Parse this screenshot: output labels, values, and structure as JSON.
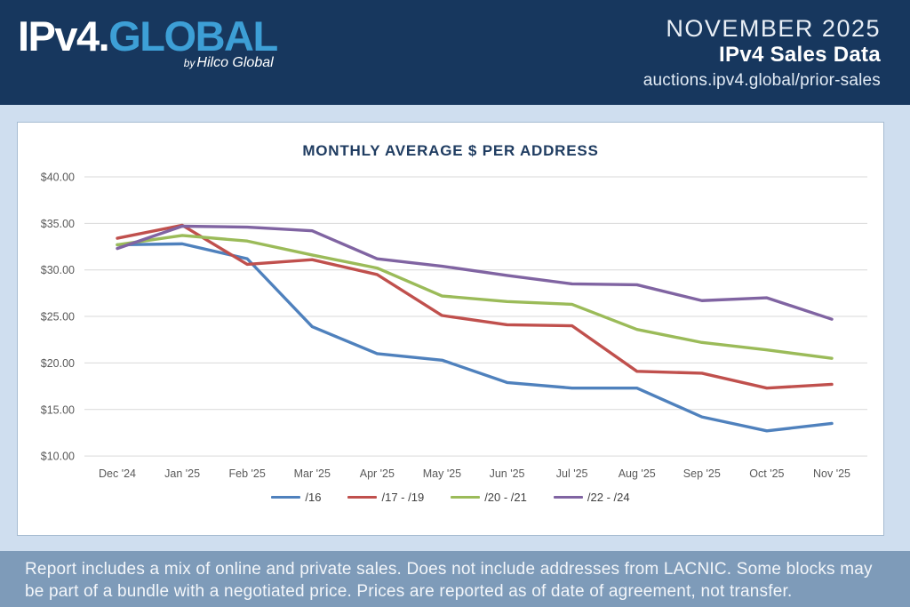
{
  "header": {
    "logo_primary": "IPv4.",
    "logo_secondary": "GLOBAL",
    "byline_by": "by",
    "byline_name": "Hilco Global",
    "report_month": "NOVEMBER 2025",
    "report_title": "IPv4 Sales Data",
    "report_url": "auctions.ipv4.global/prior-sales",
    "background_color": "#17375e",
    "logo_secondary_color": "#3d9fd6"
  },
  "chart_data": {
    "type": "line",
    "title": "MONTHLY AVERAGE $ PER ADDRESS",
    "categories": [
      "Dec '24",
      "Jan '25",
      "Feb '25",
      "Mar '25",
      "Apr '25",
      "May '25",
      "Jun '25",
      "Jul '25",
      "Aug '25",
      "Sep '25",
      "Oct '25",
      "Nov '25"
    ],
    "y_ticks": [
      "$40.00",
      "$35.00",
      "$30.00",
      "$25.00",
      "$20.00",
      "$15.00",
      "$10.00"
    ],
    "ylim": [
      10,
      40
    ],
    "y_step": 5,
    "grid": "horizontal-only",
    "legend_position": "bottom",
    "series": [
      {
        "name": "/16",
        "color": "#4F81BD",
        "values": [
          32.7,
          32.8,
          31.2,
          23.9,
          21.0,
          20.3,
          17.9,
          17.3,
          17.3,
          14.2,
          12.7,
          13.5
        ]
      },
      {
        "name": "/17 - /19",
        "color": "#C0504D",
        "values": [
          33.4,
          34.8,
          30.6,
          31.1,
          29.5,
          25.1,
          24.1,
          24.0,
          19.1,
          18.9,
          17.3,
          17.7
        ]
      },
      {
        "name": "/20 - /21",
        "color": "#9BBB59",
        "values": [
          32.7,
          33.7,
          33.1,
          31.6,
          30.2,
          27.2,
          26.6,
          26.3,
          23.6,
          22.2,
          21.4,
          20.5
        ]
      },
      {
        "name": "/22 - /24",
        "color": "#8064A2",
        "values": [
          32.3,
          34.7,
          34.6,
          34.2,
          31.2,
          30.4,
          29.4,
          28.5,
          28.4,
          26.7,
          27.0,
          24.7
        ]
      }
    ]
  },
  "footer": {
    "disclaimer": "Report includes a mix of online and private sales. Does not include addresses from LACNIC. Some blocks may be part of a bundle with a negotiated price. Prices are reported as of date of agreement, not transfer.",
    "background_color": "#7e9bb9"
  }
}
